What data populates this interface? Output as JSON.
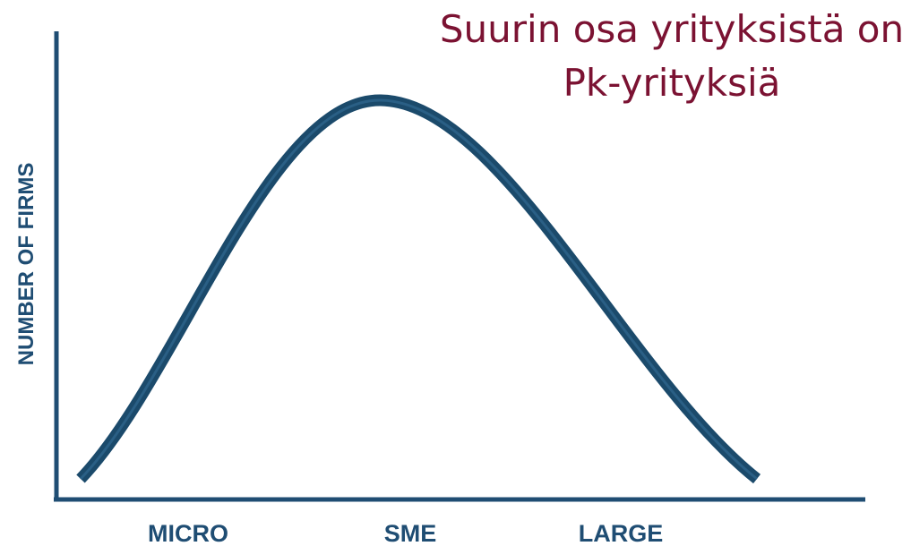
{
  "title": {
    "lines": [
      "Suurin osa yrityksistä on",
      "Pk-yrityksiä"
    ]
  },
  "y_axis": {
    "label": "NUMBER OF FIRMS"
  },
  "x_axis": {
    "labels": [
      "MICRO",
      "SME",
      "LARGE"
    ]
  }
}
